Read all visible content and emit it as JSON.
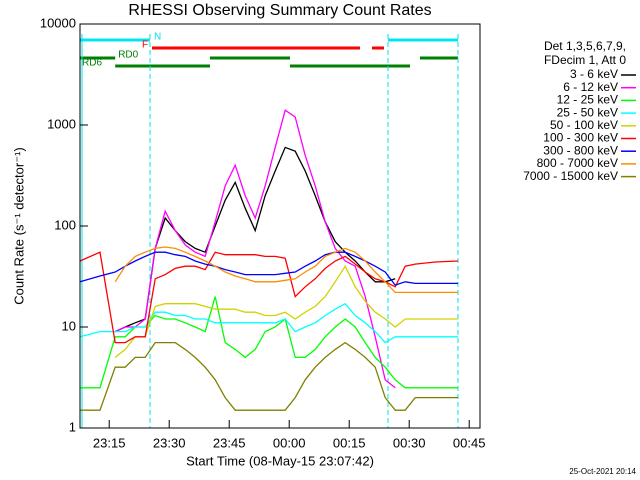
{
  "chart_data": {
    "type": "line",
    "title": "RHESSI Observing Summary Count Rates",
    "x_label": "Start Time (08-May-15 23:07:42)",
    "y_label": "Count Rate (s⁻¹ detector⁻¹)",
    "timestamp": "25-Oct-2021 20:14",
    "legend_header": [
      "Det 1,3,5,6,7,9,",
      "FDecim 1, Att 0"
    ],
    "ylog": true,
    "xlim": [
      7.7,
      107.7
    ],
    "ylim": [
      1,
      10000
    ],
    "xticks": [
      {
        "value": 15,
        "label": "23:15"
      },
      {
        "value": 30,
        "label": "23:30"
      },
      {
        "value": 45,
        "label": "23:45"
      },
      {
        "value": 60,
        "label": "00:00"
      },
      {
        "value": 75,
        "label": "00:15"
      },
      {
        "value": 90,
        "label": "00:30"
      },
      {
        "value": 105,
        "label": "00:45"
      }
    ],
    "yticks": [
      1,
      10,
      100,
      1000,
      10000
    ],
    "vlines": {
      "color": "#00e5ee",
      "x": [
        8.2,
        25.2,
        84.7,
        102.2
      ]
    },
    "flags": [
      {
        "label": "N",
        "color": "#00e5ee",
        "segments": [
          [
            7.7,
            25.2
          ],
          [
            84.7,
            102.2
          ]
        ]
      },
      {
        "label": "F",
        "color": "#ff0000",
        "segments": [
          [
            25.7,
            77.7
          ],
          [
            80.7,
            83.7
          ]
        ]
      },
      {
        "label": "RD0",
        "color": "#008000",
        "segments": [
          [
            7.7,
            16.5
          ],
          [
            40.2,
            60.2
          ],
          [
            92.7,
            102.2
          ]
        ]
      },
      {
        "label": "RD6",
        "color": "#008000",
        "segments": [
          [
            16.5,
            40.2
          ],
          [
            60.2,
            90.2
          ]
        ]
      }
    ],
    "x": [
      7.7,
      12.7,
      16.5,
      19,
      21.5,
      24,
      26.5,
      29,
      31.5,
      34,
      36.5,
      39,
      41.5,
      44,
      46.5,
      49,
      51.5,
      54,
      56.5,
      59,
      61.5,
      64,
      66.5,
      69,
      71.5,
      74,
      76.5,
      79,
      81.5,
      84,
      86.5,
      89,
      91.5,
      96.5,
      102.2
    ],
    "series": [
      {
        "name": "3 - 6 keV",
        "color": "#000000",
        "values": [
          null,
          null,
          9,
          10,
          11,
          12,
          60,
          120,
          90,
          70,
          60,
          55,
          100,
          180,
          270,
          150,
          90,
          200,
          350,
          600,
          550,
          350,
          200,
          110,
          70,
          55,
          45,
          35,
          28,
          28,
          30,
          null,
          null,
          null,
          null
        ]
      },
      {
        "name": "6 - 12 keV",
        "color": "#ff00ff",
        "values": [
          null,
          null,
          9,
          10,
          10,
          12,
          60,
          140,
          90,
          65,
          55,
          50,
          110,
          250,
          400,
          200,
          120,
          250,
          600,
          1400,
          1200,
          500,
          250,
          110,
          60,
          45,
          40,
          20,
          8,
          3,
          2.5,
          null,
          null,
          null,
          null
        ]
      },
      {
        "name": "12 - 25 keV",
        "color": "#00ff00",
        "values": [
          2.5,
          2.5,
          8,
          8,
          10,
          10,
          13,
          12,
          12,
          11,
          10,
          9,
          20,
          7,
          6,
          5,
          6,
          9,
          10,
          12,
          5,
          5,
          6,
          8,
          10,
          12,
          10,
          7,
          5,
          4,
          3,
          2.5,
          2.5,
          2.5,
          2.5
        ]
      },
      {
        "name": "25 - 50 keV",
        "color": "#00ffff",
        "values": [
          8,
          9,
          9,
          9,
          10,
          10,
          14,
          14,
          13,
          13,
          12,
          12,
          11,
          11,
          11,
          11,
          11,
          11,
          11,
          12,
          9,
          10,
          11,
          13,
          15,
          17,
          13,
          11,
          9,
          7,
          8,
          8,
          8,
          8,
          8
        ]
      },
      {
        "name": "50 - 100 keV",
        "color": "#d2d200",
        "values": [
          null,
          null,
          5,
          6,
          8,
          8,
          16,
          17,
          17,
          17,
          17,
          16,
          15,
          15,
          15,
          14,
          14,
          13,
          13,
          14,
          12,
          14,
          16,
          20,
          28,
          40,
          25,
          18,
          14,
          12,
          10,
          12,
          12,
          12,
          12
        ]
      },
      {
        "name": "100 - 300 keV",
        "color": "#ff0000",
        "values": [
          45,
          55,
          7,
          7,
          8,
          8,
          30,
          33,
          38,
          40,
          40,
          37,
          55,
          52,
          52,
          52,
          52,
          50,
          50,
          48,
          20,
          25,
          30,
          38,
          45,
          50,
          42,
          35,
          30,
          28,
          25,
          40,
          42,
          44,
          45
        ]
      },
      {
        "name": "300 - 800 keV",
        "color": "#0000ff",
        "values": [
          28,
          32,
          35,
          40,
          45,
          50,
          55,
          55,
          52,
          50,
          45,
          42,
          40,
          37,
          35,
          33,
          33,
          33,
          33,
          34,
          35,
          40,
          45,
          52,
          55,
          55,
          50,
          45,
          40,
          35,
          26,
          28,
          27,
          27,
          27
        ]
      },
      {
        "name": "800 - 7000 keV",
        "color": "#ff8c00",
        "values": [
          null,
          null,
          28,
          40,
          50,
          55,
          60,
          62,
          60,
          55,
          50,
          45,
          40,
          35,
          32,
          30,
          28,
          28,
          28,
          29,
          30,
          35,
          40,
          50,
          55,
          60,
          55,
          45,
          35,
          28,
          22,
          22,
          22,
          22,
          22
        ]
      },
      {
        "name": "7000 - 15000 keV",
        "color": "#808000",
        "values": [
          1.5,
          1.5,
          4,
          4,
          5,
          5,
          7,
          7,
          7,
          6,
          5,
          4,
          3,
          2,
          1.5,
          1.5,
          1.5,
          1.5,
          1.5,
          1.5,
          2,
          3,
          4,
          5,
          6,
          7,
          6,
          5,
          4,
          2,
          1.5,
          1.5,
          2,
          2,
          2
        ]
      }
    ]
  }
}
